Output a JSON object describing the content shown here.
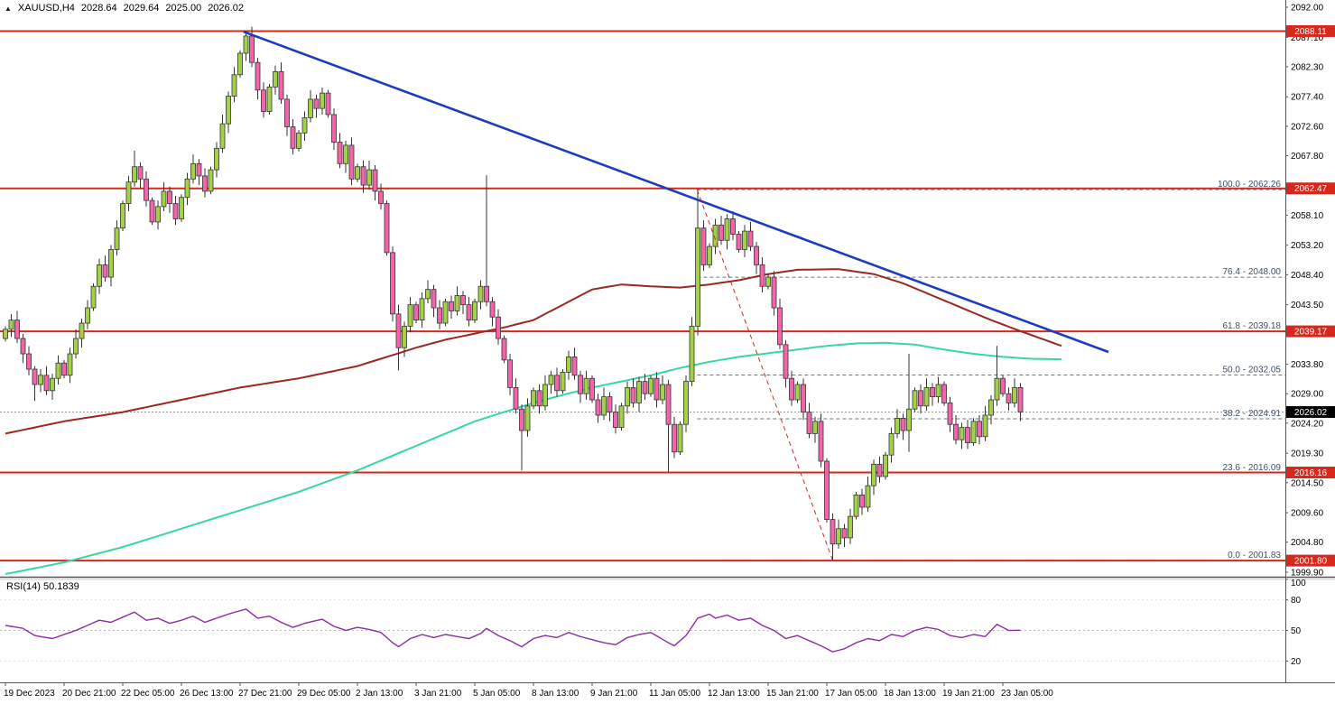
{
  "header": {
    "symbol": "XAUUSD,H4",
    "open": "2028.64",
    "high": "2029.64",
    "low": "2025.00",
    "close": "2026.02"
  },
  "colors": {
    "bull": "#a3d147",
    "bear": "#f464ab",
    "wick": "#333333",
    "body_stroke": "#333333",
    "level_line": "#d6281c",
    "trendline": "#1e3bbd",
    "ma_slow": "#9b2820",
    "ma_fast": "#35d8a4",
    "fib_line": "#66788c",
    "fib_label": "#3c5066",
    "rsi_line": "#8a2da5",
    "current_line": "#999999",
    "badge_current_bg": "#000000",
    "axis_text": "#000000",
    "frame": "#555555"
  },
  "price_axis": {
    "ticks": [
      2092.0,
      2087.1,
      2082.3,
      2077.4,
      2072.6,
      2067.8,
      2058.1,
      2053.2,
      2048.4,
      2043.5,
      2033.8,
      2029.0,
      2024.2,
      2019.3,
      2014.5,
      2009.6,
      2004.8,
      1999.9
    ],
    "level_badges": [
      2088.11,
      2062.47,
      2039.17,
      2016.16,
      2001.8
    ],
    "current_badge": 2026.02
  },
  "levels": {
    "red_lines": [
      2088.11,
      2062.47,
      2039.17,
      2016.16,
      2001.8
    ],
    "current_price": 2026.02,
    "fib": [
      {
        "label": "100.0 - 2062.26",
        "price": 2062.26
      },
      {
        "label": "76.4 - 2048.00",
        "price": 2048.0
      },
      {
        "label": "61.8 - 2039.18",
        "price": 2039.18
      },
      {
        "label": "50.0 - 2032.05",
        "price": 2032.05
      },
      {
        "label": "38.2 - 2024.91",
        "price": 2024.91
      },
      {
        "label": "23.6 - 2016.09",
        "price": 2016.09
      },
      {
        "label": "0.0 - 2001.83",
        "price": 2001.83
      }
    ]
  },
  "chart_data": {
    "type": "candlestick",
    "symbol": "XAUUSD",
    "timeframe": "H4",
    "ylim": [
      1999.9,
      2092.0
    ],
    "grid": false,
    "x_label_every": 10,
    "x_labels": [
      "19 Dec 2023",
      "20 Dec 21:00",
      "22 Dec 05:00",
      "26 Dec 13:00",
      "27 Dec 21:00",
      "29 Dec 05:00",
      "2 Jan 13:00",
      "3 Jan 21:00",
      "5 Jan 05:00",
      "8 Jan 13:00",
      "9 Jan 21:00",
      "11 Jan 05:00",
      "12 Jan 13:00",
      "15 Jan 21:00",
      "17 Jan 05:00",
      "18 Jan 13:00",
      "19 Jan 21:00",
      "23 Jan 05:00"
    ],
    "first_open": 2038.0,
    "candles_closes": [
      2039.5,
      2041,
      2038,
      2035.5,
      2033,
      2030.5,
      2032,
      2029.5,
      2031.5,
      2034,
      2032,
      2035.5,
      2038,
      2040.5,
      2043,
      2046.5,
      2050,
      2048,
      2052.5,
      2056,
      2060,
      2063.5,
      2066,
      2064,
      2060.5,
      2057,
      2059.5,
      2062,
      2060,
      2057.5,
      2061,
      2064,
      2066.5,
      2064.5,
      2062,
      2065.5,
      2069,
      2073,
      2077.5,
      2081,
      2084.5,
      2087.3,
      2083,
      2078.5,
      2075,
      2079,
      2081.5,
      2077,
      2072.5,
      2069,
      2071.5,
      2074,
      2077,
      2075.5,
      2078,
      2074.5,
      2070,
      2066.5,
      2069.5,
      2064,
      2066,
      2063,
      2065.5,
      2062,
      2060,
      2052,
      2042,
      2036.5,
      2040,
      2043.5,
      2041,
      2044.5,
      2046,
      2043,
      2040.5,
      2044,
      2042.5,
      2045,
      2043.5,
      2041,
      2044,
      2046.5,
      2044,
      2041.5,
      2038,
      2034.5,
      2030,
      2026.5,
      2023,
      2027,
      2029.5,
      2027,
      2030.5,
      2032,
      2029.5,
      2032.5,
      2035,
      2032,
      2029,
      2031.5,
      2028,
      2025.5,
      2028.5,
      2026,
      2023.5,
      2027,
      2030,
      2027.5,
      2031,
      2029,
      2031.5,
      2028,
      2030.5,
      2024,
      2019.5,
      2024,
      2031,
      2040,
      2056,
      2050,
      2053,
      2056.5,
      2054,
      2057.5,
      2055,
      2052.5,
      2055.5,
      2053,
      2050,
      2046.5,
      2048,
      2043,
      2037,
      2031.5,
      2028,
      2030.5,
      2026,
      2022.5,
      2024.5,
      2018,
      2008.5,
      2004.5,
      2007,
      2005.5,
      2009,
      2012.5,
      2010.5,
      2014,
      2017.5,
      2015.5,
      2019,
      2022.5,
      2025,
      2023,
      2026.5,
      2029.5,
      2027,
      2030,
      2028.5,
      2030.5,
      2027.5,
      2024,
      2021.5,
      2023.5,
      2021,
      2024.5,
      2022,
      2025.5,
      2028,
      2031.5,
      2029,
      2027.5,
      2030,
      2026.02
    ],
    "wick_overrides": {
      "5": {
        "l": 2027.8
      },
      "22": {
        "h": 2068.6
      },
      "41": {
        "h": 2088.11
      },
      "54": {
        "h": 2078.9
      },
      "67": {
        "l": 2032.8
      },
      "82": {
        "h": 2064.6
      },
      "88": {
        "l": 2016.5
      },
      "113": {
        "l": 2016.3
      },
      "118": {
        "h": 2062.4
      },
      "141": {
        "l": 2001.83
      },
      "154": {
        "h": 2035.5,
        "l": 2019.5
      },
      "169": {
        "h": 2036.8
      }
    },
    "overlays": {
      "trendline_blue": {
        "from": {
          "i": 40.6,
          "price": 2088.0
        },
        "to": {
          "i": 188,
          "price": 2035.8
        }
      },
      "fib_diagonal": {
        "from": {
          "i": 117.9,
          "price": 2062.26
        },
        "to": {
          "i": 141,
          "price": 2001.83
        }
      },
      "ma_slow_keyframes": [
        [
          0,
          2022.5
        ],
        [
          10,
          2024.5
        ],
        [
          20,
          2026.0
        ],
        [
          30,
          2028.0
        ],
        [
          40,
          2030.0
        ],
        [
          50,
          2031.5
        ],
        [
          60,
          2033.5
        ],
        [
          65,
          2035.0
        ],
        [
          70,
          2036.5
        ],
        [
          75,
          2037.8
        ],
        [
          80,
          2038.8
        ],
        [
          85,
          2039.8
        ],
        [
          90,
          2041.0
        ],
        [
          95,
          2043.5
        ],
        [
          100,
          2046.0
        ],
        [
          105,
          2046.8
        ],
        [
          110,
          2046.5
        ],
        [
          115,
          2046.3
        ],
        [
          120,
          2046.8
        ],
        [
          125,
          2047.5
        ],
        [
          130,
          2048.5
        ],
        [
          135,
          2049.2
        ],
        [
          142,
          2049.3
        ],
        [
          148,
          2048.5
        ],
        [
          153,
          2047.0
        ],
        [
          158,
          2045.0
        ],
        [
          163,
          2043.0
        ],
        [
          168,
          2041.0
        ],
        [
          173,
          2039.2
        ],
        [
          180,
          2036.8
        ]
      ],
      "ma_fast_keyframes": [
        [
          0,
          1999.6
        ],
        [
          10,
          2001.5
        ],
        [
          20,
          2004.0
        ],
        [
          30,
          2007.0
        ],
        [
          40,
          2010.0
        ],
        [
          50,
          2013.0
        ],
        [
          60,
          2016.5
        ],
        [
          65,
          2018.5
        ],
        [
          70,
          2020.5
        ],
        [
          75,
          2022.5
        ],
        [
          80,
          2024.5
        ],
        [
          85,
          2026.0
        ],
        [
          90,
          2027.5
        ],
        [
          95,
          2028.8
        ],
        [
          100,
          2030.0
        ],
        [
          105,
          2031.0
        ],
        [
          110,
          2032.0
        ],
        [
          115,
          2033.2
        ],
        [
          120,
          2034.2
        ],
        [
          125,
          2035.0
        ],
        [
          130,
          2035.6
        ],
        [
          135,
          2036.2
        ],
        [
          140,
          2036.8
        ],
        [
          145,
          2037.2
        ],
        [
          150,
          2037.3
        ],
        [
          155,
          2037.0
        ],
        [
          160,
          2036.2
        ],
        [
          165,
          2035.5
        ],
        [
          170,
          2035.0
        ],
        [
          175,
          2034.7
        ],
        [
          180,
          2034.6
        ]
      ]
    },
    "rsi": {
      "label": "RSI(14) 50.1839",
      "period": 14,
      "value": 50.1839,
      "scale_labels": [
        100,
        80,
        50,
        20
      ],
      "level_lines": [
        80,
        50,
        20
      ],
      "keyframes": [
        [
          0,
          55
        ],
        [
          3,
          52
        ],
        [
          5,
          45
        ],
        [
          8,
          42
        ],
        [
          10,
          46
        ],
        [
          12,
          50
        ],
        [
          14,
          55
        ],
        [
          16,
          60
        ],
        [
          18,
          58
        ],
        [
          20,
          63
        ],
        [
          22,
          68
        ],
        [
          24,
          60
        ],
        [
          26,
          62
        ],
        [
          28,
          57
        ],
        [
          30,
          60
        ],
        [
          32,
          64
        ],
        [
          34,
          58
        ],
        [
          36,
          62
        ],
        [
          38,
          66
        ],
        [
          41,
          71
        ],
        [
          43,
          62
        ],
        [
          45,
          64
        ],
        [
          47,
          58
        ],
        [
          49,
          53
        ],
        [
          51,
          57
        ],
        [
          54,
          61
        ],
        [
          56,
          54
        ],
        [
          58,
          50
        ],
        [
          60,
          53
        ],
        [
          62,
          51
        ],
        [
          64,
          48
        ],
        [
          66,
          38
        ],
        [
          67,
          34
        ],
        [
          69,
          42
        ],
        [
          71,
          46
        ],
        [
          73,
          43
        ],
        [
          75,
          46
        ],
        [
          77,
          44
        ],
        [
          79,
          42
        ],
        [
          81,
          47
        ],
        [
          82,
          52
        ],
        [
          84,
          45
        ],
        [
          86,
          40
        ],
        [
          88,
          34
        ],
        [
          90,
          42
        ],
        [
          92,
          45
        ],
        [
          94,
          43
        ],
        [
          96,
          48
        ],
        [
          98,
          44
        ],
        [
          100,
          41
        ],
        [
          102,
          38
        ],
        [
          104,
          36
        ],
        [
          106,
          43
        ],
        [
          108,
          46
        ],
        [
          110,
          48
        ],
        [
          113,
          38
        ],
        [
          114,
          35
        ],
        [
          116,
          45
        ],
        [
          118,
          62
        ],
        [
          120,
          66
        ],
        [
          121,
          62
        ],
        [
          123,
          65
        ],
        [
          125,
          60
        ],
        [
          127,
          62
        ],
        [
          129,
          55
        ],
        [
          131,
          50
        ],
        [
          133,
          42
        ],
        [
          135,
          45
        ],
        [
          137,
          40
        ],
        [
          139,
          35
        ],
        [
          141,
          29
        ],
        [
          143,
          32
        ],
        [
          145,
          38
        ],
        [
          147,
          42
        ],
        [
          149,
          40
        ],
        [
          151,
          46
        ],
        [
          153,
          44
        ],
        [
          155,
          50
        ],
        [
          157,
          53
        ],
        [
          159,
          51
        ],
        [
          161,
          45
        ],
        [
          163,
          43
        ],
        [
          165,
          46
        ],
        [
          167,
          44
        ],
        [
          169,
          56
        ],
        [
          171,
          50
        ],
        [
          173,
          50.2
        ]
      ]
    }
  }
}
